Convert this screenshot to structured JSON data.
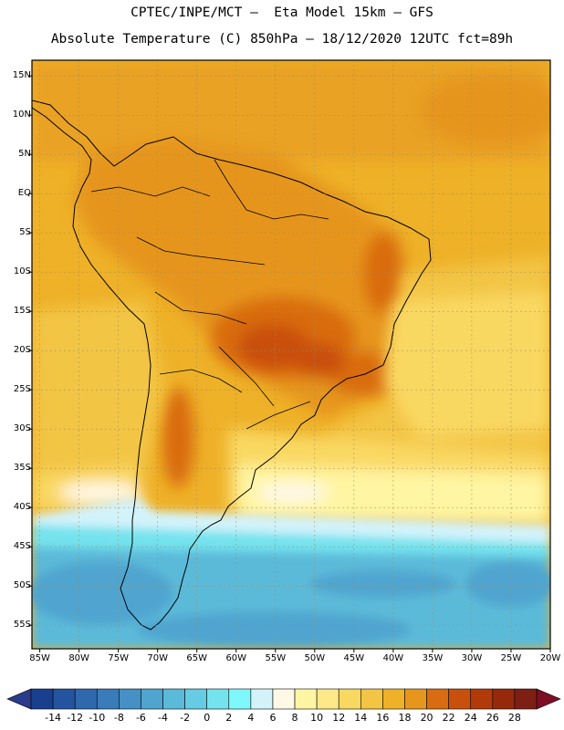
{
  "header": {
    "line1": "CPTEC/INPE/MCT –  Eta Model 15km – GFS",
    "line2": "Absolute Temperature (C) 850hPa – 18/12/2020 12UTC fct=89h"
  },
  "map": {
    "lon_range": [
      -86,
      -20
    ],
    "lat_range": [
      -58,
      17
    ],
    "lat_labels": [
      "15N",
      "10N",
      "5N",
      "EQ",
      "5S",
      "10S",
      "15S",
      "20S",
      "25S",
      "30S",
      "35S",
      "40S",
      "45S",
      "50S",
      "55S"
    ],
    "lat_values": [
      15,
      10,
      5,
      0,
      -5,
      -10,
      -15,
      -20,
      -25,
      -30,
      -35,
      -40,
      -45,
      -50,
      -55
    ],
    "lon_labels": [
      "85W",
      "80W",
      "75W",
      "70W",
      "65W",
      "60W",
      "55W",
      "50W",
      "45W",
      "40W",
      "35W",
      "30W",
      "25W",
      "20W"
    ],
    "lon_values": [
      -85,
      -80,
      -75,
      -70,
      -65,
      -60,
      -55,
      -50,
      -45,
      -40,
      -35,
      -30,
      -25,
      -20
    ]
  },
  "colorbar": {
    "labels": [
      "-14",
      "-12",
      "-10",
      "-8",
      "-6",
      "-4",
      "-2",
      "0",
      "2",
      "4",
      "6",
      "8",
      "10",
      "12",
      "14",
      "16",
      "18",
      "20",
      "22",
      "24",
      "26",
      "28"
    ],
    "colors": [
      "#1a3f8f",
      "#24549f",
      "#2f68ad",
      "#3a7bba",
      "#4590c4",
      "#4fa5cf",
      "#5bbad9",
      "#66cce4",
      "#74e3ee",
      "#7ff8fb",
      "#d3f3fb",
      "#fff8e6",
      "#fff5a3",
      "#fde98a",
      "#f9d862",
      "#f3c545",
      "#eeb128",
      "#e6951d",
      "#d96c10",
      "#c9500c",
      "#b23a0a",
      "#96290c",
      "#7e1f14"
    ],
    "end_colors": [
      "#2a3b8a",
      "#7c0f24"
    ]
  }
}
